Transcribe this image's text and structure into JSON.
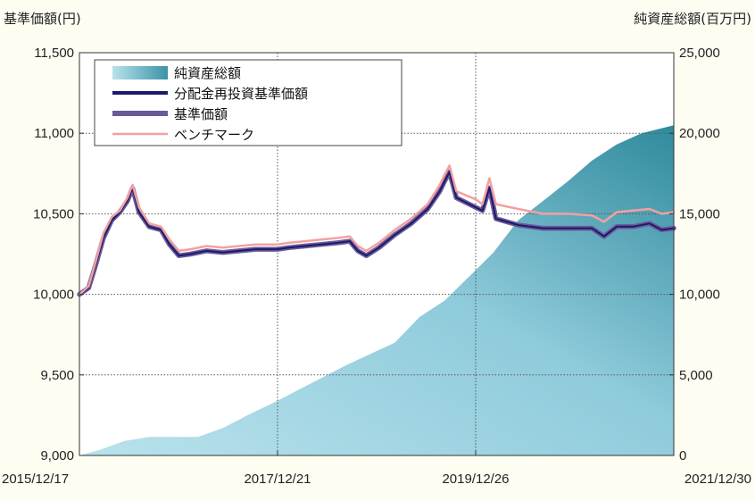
{
  "chart_data": {
    "type": "line",
    "ylabel_left": "基準価額(円)",
    "ylabel_right": "純資産総額(百万円)",
    "left_axis": {
      "ylim": [
        9000,
        11500
      ],
      "ticks": [
        9000,
        9500,
        10000,
        10500,
        11000,
        11500
      ],
      "tick_labels": [
        "9,000",
        "9,500",
        "10,000",
        "10,500",
        "11,000",
        "11,500"
      ]
    },
    "right_axis": {
      "ylim": [
        0,
        25000
      ],
      "ticks": [
        0,
        5000,
        10000,
        15000,
        20000,
        25000
      ],
      "tick_labels": [
        "0",
        "5,000",
        "10,000",
        "15,000",
        "20,000",
        "25,000"
      ]
    },
    "x_axis": {
      "start": "2015/12/17",
      "end": "2021/12/30",
      "tick_labels": [
        "2015/12/17",
        "2017/12/21",
        "2019/12/26",
        "2021/12/30"
      ]
    },
    "grid": true,
    "legend_position": "top-left",
    "legend": [
      "純資産総額",
      "分配金再投資基準価額",
      "基準価額",
      "ベンチマーク"
    ],
    "colors": {
      "net_assets_light": "#a8d8e4",
      "net_assets_dark": "#2e8598",
      "reinvested_nav": "#1b1a6b",
      "nav": "#6b5a98",
      "benchmark": "#f4a0a0"
    },
    "series": [
      {
        "name": "純資産総額",
        "axis": "right",
        "style": "area",
        "points": [
          [
            "2015/12/17",
            0
          ],
          [
            "2016/03/01",
            350
          ],
          [
            "2016/06/01",
            900
          ],
          [
            "2016/09/01",
            1150
          ],
          [
            "2016/12/01",
            1150
          ],
          [
            "2017/03/01",
            1150
          ],
          [
            "2017/06/01",
            1700
          ],
          [
            "2017/09/01",
            2500
          ],
          [
            "2017/12/21",
            3400
          ],
          [
            "2018/03/01",
            4000
          ],
          [
            "2018/06/01",
            4800
          ],
          [
            "2018/09/01",
            5600
          ],
          [
            "2018/12/01",
            6300
          ],
          [
            "2019/03/01",
            7000
          ],
          [
            "2019/06/01",
            8600
          ],
          [
            "2019/09/01",
            9600
          ],
          [
            "2019/12/26",
            11500
          ],
          [
            "2020/03/01",
            12600
          ],
          [
            "2020/06/01",
            14600
          ],
          [
            "2020/09/01",
            15800
          ],
          [
            "2020/12/01",
            17000
          ],
          [
            "2021/03/01",
            18300
          ],
          [
            "2021/06/01",
            19300
          ],
          [
            "2021/09/01",
            20000
          ],
          [
            "2021/12/30",
            20500
          ]
        ]
      },
      {
        "name": "ベンチマーク",
        "axis": "left",
        "style": "line",
        "points": [
          [
            "2015/12/17",
            10000
          ],
          [
            "2016/01/20",
            10050
          ],
          [
            "2016/02/15",
            10200
          ],
          [
            "2016/03/15",
            10380
          ],
          [
            "2016/04/15",
            10480
          ],
          [
            "2016/05/15",
            10520
          ],
          [
            "2016/06/12",
            10600
          ],
          [
            "2016/07/01",
            10680
          ],
          [
            "2016/07/25",
            10540
          ],
          [
            "2016/09/01",
            10440
          ],
          [
            "2016/10/15",
            10420
          ],
          [
            "2016/11/15",
            10340
          ],
          [
            "2016/12/20",
            10270
          ],
          [
            "2017/02/01",
            10280
          ],
          [
            "2017/04/01",
            10300
          ],
          [
            "2017/06/01",
            10290
          ],
          [
            "2017/08/01",
            10300
          ],
          [
            "2017/10/01",
            10310
          ],
          [
            "2017/12/21",
            10310
          ],
          [
            "2018/02/01",
            10320
          ],
          [
            "2018/04/01",
            10330
          ],
          [
            "2018/06/01",
            10340
          ],
          [
            "2018/08/01",
            10350
          ],
          [
            "2018/09/15",
            10360
          ],
          [
            "2018/10/15",
            10300
          ],
          [
            "2018/11/15",
            10270
          ],
          [
            "2019/01/01",
            10320
          ],
          [
            "2019/03/01",
            10400
          ],
          [
            "2019/05/01",
            10470
          ],
          [
            "2019/07/01",
            10560
          ],
          [
            "2019/08/15",
            10680
          ],
          [
            "2019/09/01",
            10740
          ],
          [
            "2019/09/20",
            10800
          ],
          [
            "2019/10/15",
            10640
          ],
          [
            "2019/12/26",
            10590
          ],
          [
            "2020/01/20",
            10560
          ],
          [
            "2020/02/15",
            10720
          ],
          [
            "2020/03/10",
            10560
          ],
          [
            "2020/06/01",
            10530
          ],
          [
            "2020/09/01",
            10500
          ],
          [
            "2020/12/01",
            10500
          ],
          [
            "2021/03/01",
            10490
          ],
          [
            "2021/04/15",
            10450
          ],
          [
            "2021/06/01",
            10510
          ],
          [
            "2021/08/01",
            10520
          ],
          [
            "2021/10/01",
            10530
          ],
          [
            "2021/11/15",
            10500
          ],
          [
            "2021/12/30",
            10510
          ]
        ]
      },
      {
        "name": "分配金再投資基準価額",
        "axis": "left",
        "style": "line",
        "points": [
          [
            "2015/12/17",
            10000
          ],
          [
            "2016/01/20",
            10040
          ],
          [
            "2016/02/15",
            10180
          ],
          [
            "2016/03/15",
            10350
          ],
          [
            "2016/04/15",
            10460
          ],
          [
            "2016/05/15",
            10510
          ],
          [
            "2016/06/12",
            10580
          ],
          [
            "2016/07/01",
            10660
          ],
          [
            "2016/07/25",
            10510
          ],
          [
            "2016/09/01",
            10420
          ],
          [
            "2016/10/15",
            10400
          ],
          [
            "2016/11/15",
            10310
          ],
          [
            "2016/12/20",
            10240
          ],
          [
            "2017/02/01",
            10250
          ],
          [
            "2017/04/01",
            10270
          ],
          [
            "2017/06/01",
            10260
          ],
          [
            "2017/08/01",
            10270
          ],
          [
            "2017/10/01",
            10280
          ],
          [
            "2017/12/21",
            10280
          ],
          [
            "2018/02/01",
            10290
          ],
          [
            "2018/04/01",
            10300
          ],
          [
            "2018/06/01",
            10310
          ],
          [
            "2018/08/01",
            10320
          ],
          [
            "2018/09/15",
            10330
          ],
          [
            "2018/10/15",
            10270
          ],
          [
            "2018/11/15",
            10240
          ],
          [
            "2019/01/01",
            10290
          ],
          [
            "2019/03/01",
            10370
          ],
          [
            "2019/05/01",
            10440
          ],
          [
            "2019/07/01",
            10530
          ],
          [
            "2019/08/15",
            10640
          ],
          [
            "2019/09/01",
            10700
          ],
          [
            "2019/09/20",
            10760
          ],
          [
            "2019/10/15",
            10600
          ],
          [
            "2019/12/26",
            10540
          ],
          [
            "2020/01/20",
            10520
          ],
          [
            "2020/02/15",
            10660
          ],
          [
            "2020/03/10",
            10470
          ],
          [
            "2020/06/01",
            10430
          ],
          [
            "2020/09/01",
            10410
          ],
          [
            "2020/12/01",
            10410
          ],
          [
            "2021/03/01",
            10410
          ],
          [
            "2021/04/15",
            10360
          ],
          [
            "2021/06/01",
            10420
          ],
          [
            "2021/08/01",
            10420
          ],
          [
            "2021/10/01",
            10440
          ],
          [
            "2021/11/15",
            10400
          ],
          [
            "2021/12/30",
            10410
          ]
        ]
      },
      {
        "name": "基準価額",
        "axis": "left",
        "style": "line",
        "points": [
          [
            "2015/12/17",
            10000
          ],
          [
            "2016/01/20",
            10040
          ],
          [
            "2016/02/15",
            10180
          ],
          [
            "2016/03/15",
            10350
          ],
          [
            "2016/04/15",
            10460
          ],
          [
            "2016/05/15",
            10510
          ],
          [
            "2016/06/12",
            10580
          ],
          [
            "2016/07/01",
            10660
          ],
          [
            "2016/07/25",
            10510
          ],
          [
            "2016/09/01",
            10420
          ],
          [
            "2016/10/15",
            10400
          ],
          [
            "2016/11/15",
            10310
          ],
          [
            "2016/12/20",
            10240
          ],
          [
            "2017/02/01",
            10250
          ],
          [
            "2017/04/01",
            10270
          ],
          [
            "2017/06/01",
            10260
          ],
          [
            "2017/08/01",
            10270
          ],
          [
            "2017/10/01",
            10280
          ],
          [
            "2017/12/21",
            10280
          ],
          [
            "2018/02/01",
            10290
          ],
          [
            "2018/04/01",
            10300
          ],
          [
            "2018/06/01",
            10310
          ],
          [
            "2018/08/01",
            10320
          ],
          [
            "2018/09/15",
            10330
          ],
          [
            "2018/10/15",
            10270
          ],
          [
            "2018/11/15",
            10240
          ],
          [
            "2019/01/01",
            10290
          ],
          [
            "2019/03/01",
            10370
          ],
          [
            "2019/05/01",
            10440
          ],
          [
            "2019/07/01",
            10530
          ],
          [
            "2019/08/15",
            10640
          ],
          [
            "2019/09/01",
            10700
          ],
          [
            "2019/09/20",
            10760
          ],
          [
            "2019/10/15",
            10600
          ],
          [
            "2019/12/26",
            10540
          ],
          [
            "2020/01/20",
            10520
          ],
          [
            "2020/02/15",
            10660
          ],
          [
            "2020/03/10",
            10470
          ],
          [
            "2020/06/01",
            10430
          ],
          [
            "2020/09/01",
            10410
          ],
          [
            "2020/12/01",
            10410
          ],
          [
            "2021/03/01",
            10410
          ],
          [
            "2021/04/15",
            10360
          ],
          [
            "2021/06/01",
            10420
          ],
          [
            "2021/08/01",
            10420
          ],
          [
            "2021/10/01",
            10440
          ],
          [
            "2021/11/15",
            10400
          ],
          [
            "2021/12/30",
            10410
          ]
        ]
      }
    ]
  }
}
